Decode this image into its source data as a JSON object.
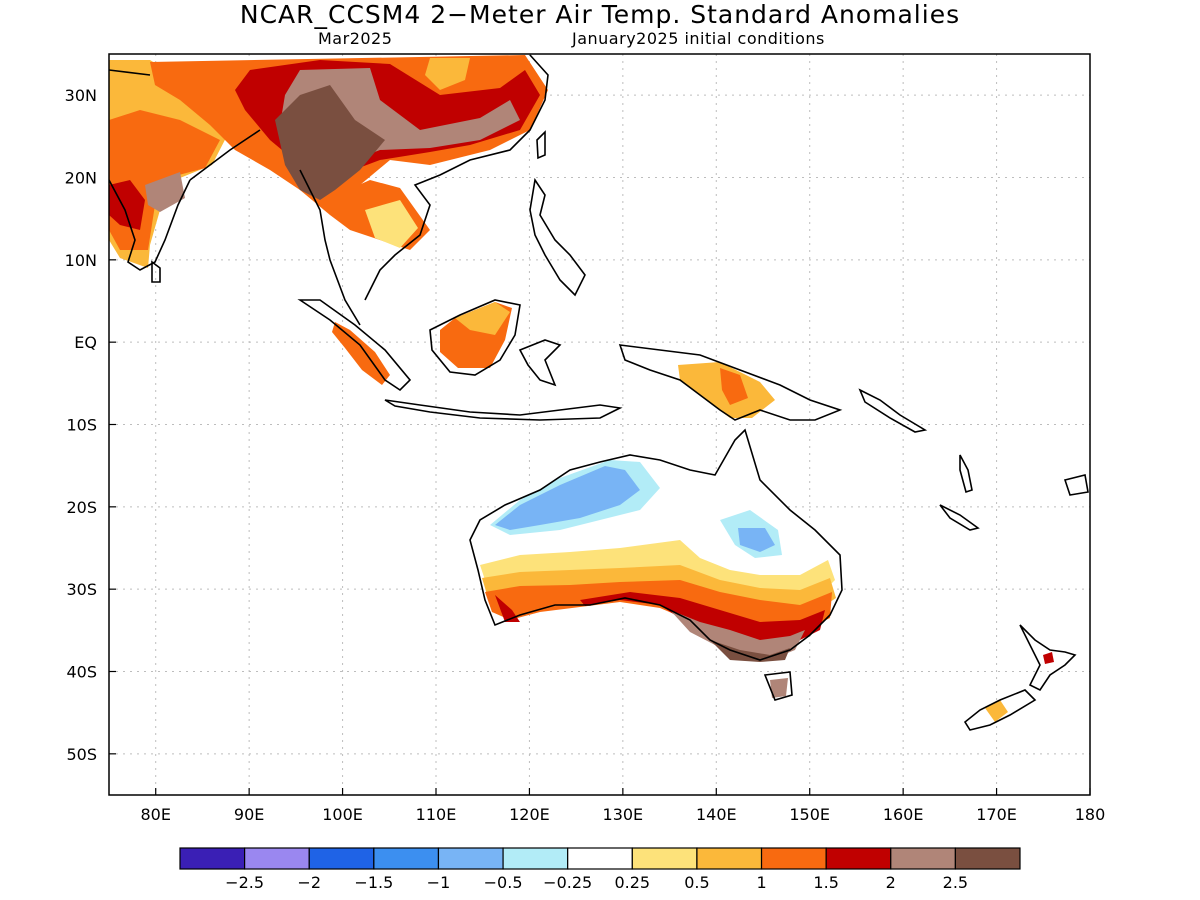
{
  "title": "NCAR_CCSM4 2−Meter Air Temp. Standard Anomalies",
  "subtitle_left": "Mar2025",
  "subtitle_right": "January2025 initial conditions",
  "map": {
    "lon_range": [
      75,
      180
    ],
    "lat_range": [
      -55,
      35
    ],
    "lat_ticks": [
      {
        "label": "30N",
        "lat": 30
      },
      {
        "label": "20N",
        "lat": 20
      },
      {
        "label": "10N",
        "lat": 10
      },
      {
        "label": "EQ",
        "lat": 0
      },
      {
        "label": "10S",
        "lat": -10
      },
      {
        "label": "20S",
        "lat": -20
      },
      {
        "label": "30S",
        "lat": -30
      },
      {
        "label": "40S",
        "lat": -40
      },
      {
        "label": "50S",
        "lat": -50
      }
    ],
    "lon_ticks": [
      {
        "label": "80E",
        "lon": 80
      },
      {
        "label": "90E",
        "lon": 90
      },
      {
        "label": "100E",
        "lon": 100
      },
      {
        "label": "110E",
        "lon": 110
      },
      {
        "label": "120E",
        "lon": 120
      },
      {
        "label": "130E",
        "lon": 130
      },
      {
        "label": "140E",
        "lon": 140
      },
      {
        "label": "150E",
        "lon": 150
      },
      {
        "label": "160E",
        "lon": 160
      },
      {
        "label": "170E",
        "lon": 170
      },
      {
        "label": "180",
        "lon": 180
      }
    ],
    "grid": true
  },
  "colorbar": {
    "colors": [
      "#3a1fb5",
      "#9a87f0",
      "#1f63e6",
      "#3c8ff0",
      "#78b4f5",
      "#b2ecf7",
      "#ffffff",
      "#fde27a",
      "#fbb83a",
      "#f86a10",
      "#c00000",
      "#b08578",
      "#7a4f40"
    ],
    "labels": [
      "−2.5",
      "−2",
      "−1.5",
      "−1",
      "−0.5",
      "−0.25",
      "0.25",
      "0.5",
      "1",
      "1.5",
      "2",
      "2.5"
    ]
  }
}
